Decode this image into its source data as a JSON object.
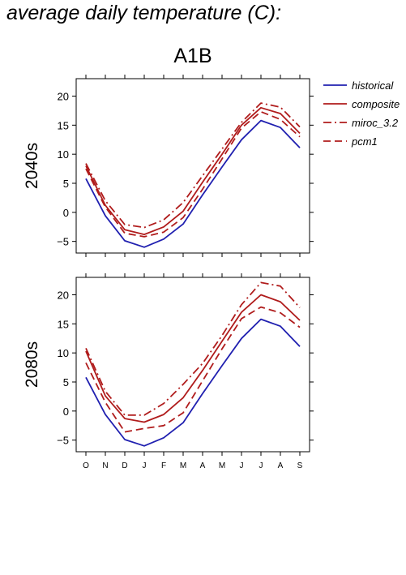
{
  "page_title": "average daily temperature (C):",
  "scenario_title": "A1B",
  "chart_data": {
    "type": "line",
    "categories": [
      "O",
      "N",
      "D",
      "J",
      "F",
      "M",
      "A",
      "M",
      "J",
      "J",
      "A",
      "S"
    ],
    "ylim": [
      -7,
      23
    ],
    "yticks": [
      -5,
      0,
      5,
      10,
      15,
      20
    ],
    "grid": false,
    "legend_position": "top-right, outside plot",
    "legend": [
      {
        "name": "historical",
        "color": "#2020b0",
        "dash": "solid"
      },
      {
        "name": "composite",
        "color": "#b01c1c",
        "dash": "solid"
      },
      {
        "name": "miroc_3.2",
        "color": "#b01c1c",
        "dash": "dashdot"
      },
      {
        "name": "pcm1",
        "color": "#b01c1c",
        "dash": "dashed"
      }
    ],
    "panels": [
      {
        "label": "2040s",
        "series": [
          {
            "name": "historical",
            "values": [
              5.8,
              -0.6,
              -4.9,
              -6.0,
              -4.6,
              -2.0,
              3.0,
              7.8,
              12.5,
              15.8,
              14.6,
              11.1
            ]
          },
          {
            "name": "composite",
            "values": [
              8.0,
              1.2,
              -3.0,
              -3.8,
              -2.5,
              0.2,
              5.2,
              10.0,
              15.0,
              18.0,
              17.0,
              13.6
            ]
          },
          {
            "name": "miroc_3.2",
            "values": [
              8.4,
              2.0,
              -2.1,
              -2.6,
              -1.3,
              1.7,
              6.3,
              10.9,
              15.5,
              18.8,
              18.1,
              14.7
            ]
          },
          {
            "name": "pcm1",
            "values": [
              7.5,
              0.9,
              -3.6,
              -4.2,
              -3.4,
              -0.9,
              4.0,
              9.2,
              14.5,
              17.3,
              16.0,
              13.0
            ]
          }
        ]
      },
      {
        "label": "2080s",
        "series": [
          {
            "name": "historical",
            "values": [
              5.8,
              -0.6,
              -4.9,
              -6.0,
              -4.6,
              -2.0,
              3.0,
              7.8,
              12.5,
              15.8,
              14.6,
              11.1
            ]
          },
          {
            "name": "composite",
            "values": [
              10.3,
              2.6,
              -1.3,
              -1.9,
              -0.6,
              2.3,
              7.0,
              12.0,
              17.0,
              20.0,
              18.8,
              15.6
            ]
          },
          {
            "name": "miroc_3.2",
            "values": [
              10.8,
              3.4,
              -0.7,
              -0.7,
              1.3,
              4.6,
              8.2,
              13.0,
              18.3,
              22.1,
              21.5,
              17.8
            ]
          },
          {
            "name": "pcm1",
            "values": [
              8.3,
              1.5,
              -3.6,
              -3.0,
              -2.5,
              -0.3,
              5.2,
              10.7,
              15.9,
              17.9,
              16.9,
              14.4
            ]
          }
        ]
      }
    ]
  }
}
